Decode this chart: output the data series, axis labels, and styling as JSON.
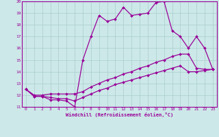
{
  "xlabel": "Windchill (Refroidissement éolien,°C)",
  "background_color": "#cce8e8",
  "grid_color": "#aacccc",
  "line_color": "#990099",
  "xlim": [
    -0.5,
    23.5
  ],
  "ylim": [
    11,
    20
  ],
  "xticks": [
    0,
    1,
    2,
    3,
    4,
    5,
    6,
    7,
    8,
    9,
    10,
    11,
    12,
    13,
    14,
    15,
    16,
    17,
    18,
    19,
    20,
    21,
    22,
    23
  ],
  "yticks": [
    11,
    12,
    13,
    14,
    15,
    16,
    17,
    18,
    19,
    20
  ],
  "series": [
    [
      12.5,
      11.9,
      11.9,
      11.6,
      11.6,
      11.5,
      11.0,
      15.0,
      17.0,
      18.8,
      18.3,
      18.5,
      19.5,
      18.8,
      18.9,
      19.0,
      19.9,
      20.0,
      17.5,
      17.0,
      16.0,
      17.0,
      16.0,
      14.2
    ],
    [
      12.5,
      12.0,
      12.0,
      12.1,
      12.1,
      12.1,
      12.1,
      12.3,
      12.7,
      13.0,
      13.3,
      13.5,
      13.8,
      14.0,
      14.3,
      14.5,
      14.8,
      15.0,
      15.3,
      15.5,
      15.5,
      14.3,
      14.2,
      14.2
    ],
    [
      12.5,
      11.9,
      11.9,
      11.8,
      11.7,
      11.7,
      11.5,
      11.8,
      12.1,
      12.4,
      12.6,
      12.9,
      13.1,
      13.3,
      13.5,
      13.7,
      13.9,
      14.1,
      14.3,
      14.5,
      14.0,
      14.0,
      14.1,
      14.2
    ]
  ]
}
